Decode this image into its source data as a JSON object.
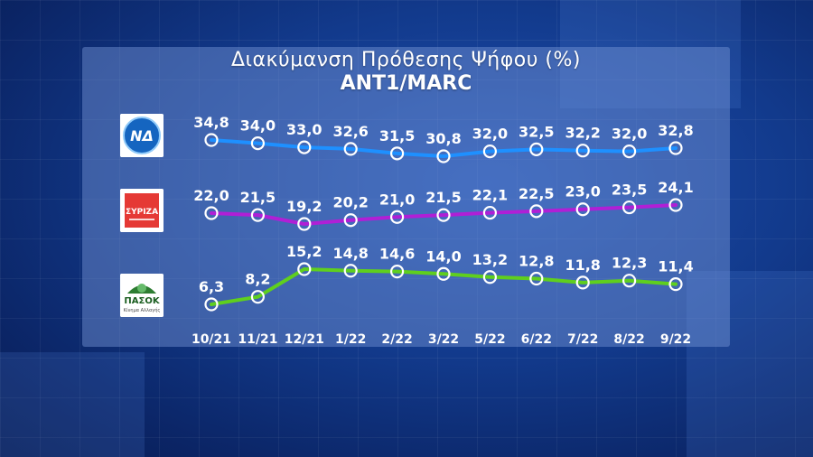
{
  "title": "Διακύμανση Πρόθεσης Ψήφου (%)",
  "subtitle": "ANT1/MARC",
  "logos": {
    "nd": "ΝΔ",
    "syriza": "ΣΥΡΙΖΑ",
    "pasok": "ΠΑΣΟΚ",
    "pasok_sub": "Κίνημα Αλλαγής"
  },
  "chart_data": {
    "type": "line",
    "categories": [
      "10/21",
      "11/21",
      "12/21",
      "1/22",
      "2/22",
      "3/22",
      "5/22",
      "6/22",
      "7/22",
      "8/22",
      "9/22"
    ],
    "series": [
      {
        "key": "nd",
        "color": "#1e90ff",
        "values": [
          34.8,
          34.0,
          33.0,
          32.6,
          31.5,
          30.8,
          32.0,
          32.5,
          32.2,
          32.0,
          32.8
        ],
        "labels": [
          "34,8",
          "34,0",
          "33,0",
          "32,6",
          "31,5",
          "30,8",
          "32,0",
          "32,5",
          "32,2",
          "32,0",
          "32,8"
        ]
      },
      {
        "key": "syriza",
        "color": "#b01fd6",
        "values": [
          22.0,
          21.5,
          19.2,
          20.2,
          21.0,
          21.5,
          22.1,
          22.5,
          23.0,
          23.5,
          24.1
        ],
        "labels": [
          "22,0",
          "21,5",
          "19,2",
          "20,2",
          "21,0",
          "21,5",
          "22,1",
          "22,5",
          "23,0",
          "23,5",
          "24,1"
        ]
      },
      {
        "key": "pasok",
        "color": "#5fcf1e",
        "values": [
          6.3,
          8.2,
          15.2,
          14.8,
          14.6,
          14.0,
          13.2,
          12.8,
          11.8,
          12.3,
          11.4
        ],
        "labels": [
          "6,3",
          "8,2",
          "15,2",
          "14,8",
          "14,6",
          "14,0",
          "13,2",
          "12,8",
          "11,8",
          "12,3",
          "11,4"
        ]
      }
    ],
    "marker": "hollow-circle-white",
    "grid": false,
    "legend": "party logos at left"
  }
}
